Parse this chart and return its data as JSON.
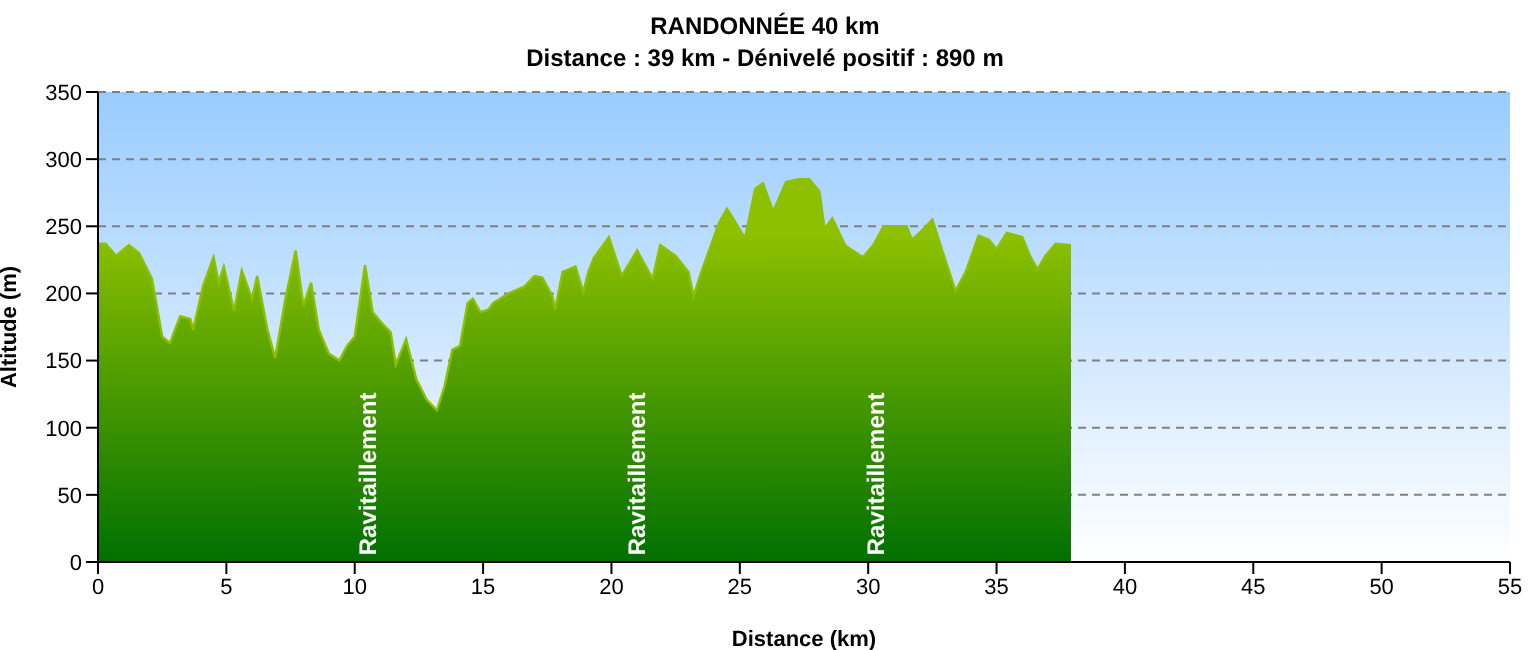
{
  "chart_data": {
    "type": "area",
    "title": "RANDONNÉE 40 km",
    "subtitle": "Distance : 39 km - Dénivelé positif : 890 m",
    "xlabel": "Distance (km)",
    "ylabel": "Altitude (m)",
    "x": [
      0,
      0.3,
      0.7,
      1.2,
      1.6,
      2.1,
      2.5,
      2.8,
      3.2,
      3.6,
      3.7,
      4.1,
      4.5,
      4.7,
      4.9,
      5.3,
      5.6,
      6.0,
      6.2,
      6.6,
      6.9,
      7.3,
      7.7,
      8.0,
      8.3,
      8.6,
      9.0,
      9.4,
      9.7,
      10.0,
      10.4,
      10.7,
      11.1,
      11.4,
      11.6,
      12.0,
      12.4,
      12.8,
      13.2,
      13.5,
      13.8,
      14.1,
      14.4,
      14.6,
      14.9,
      15.2,
      15.4,
      16.0,
      16.6,
      17.0,
      17.3,
      17.7,
      17.8,
      18.1,
      18.6,
      18.9,
      19.1,
      19.3,
      19.9,
      20.4,
      21.0,
      21.6,
      21.9,
      22.5,
      23.0,
      23.2,
      23.5,
      23.9,
      24.2,
      24.5,
      24.7,
      25.2,
      25.6,
      25.9,
      26.3,
      26.8,
      27.3,
      27.7,
      28.1,
      28.3,
      28.6,
      29.1,
      29.3,
      29.8,
      30.2,
      30.6,
      31.5,
      31.7,
      32.0,
      32.5,
      32.9,
      33.4,
      33.8,
      34.3,
      34.7,
      35.0,
      35.4,
      36.0,
      36.3,
      36.6,
      36.9,
      37.3,
      37.9
    ],
    "series": [
      {
        "color": "#8cc000",
        "values": [
          237,
          237,
          228,
          236,
          230,
          211,
          168,
          163,
          183,
          181,
          173,
          206,
          227,
          208,
          220,
          187,
          217,
          196,
          213,
          173,
          152,
          196,
          232,
          191,
          208,
          173,
          155,
          150,
          161,
          168,
          221,
          186,
          177,
          171,
          147,
          166,
          136,
          121,
          113,
          131,
          158,
          161,
          193,
          196,
          186,
          188,
          193,
          200,
          205,
          213,
          212,
          198,
          188,
          216,
          220,
          201,
          216,
          226,
          242,
          213,
          232,
          211,
          236,
          228,
          216,
          198,
          216,
          237,
          253,
          263,
          257,
          241,
          278,
          282,
          261,
          283,
          285,
          285,
          276,
          248,
          256,
          236,
          233,
          227,
          236,
          250,
          250,
          240,
          245,
          255,
          231,
          202,
          216,
          243,
          240,
          233,
          245,
          242,
          228,
          218,
          228,
          237,
          236
        ]
      }
    ],
    "xlim": [
      0,
      55
    ],
    "xticks": [
      0,
      5,
      10,
      15,
      20,
      25,
      30,
      35,
      40,
      45,
      50,
      55
    ],
    "ylim": [
      0,
      350
    ],
    "yticks": [
      0,
      50,
      100,
      150,
      200,
      250,
      300,
      350
    ],
    "grid": "y",
    "annotations": [
      {
        "text": "Ravitaillement",
        "x": 10.5,
        "y": 5
      },
      {
        "text": "Ravitaillement",
        "x": 21,
        "y": 5
      },
      {
        "text": "Ravitaillement",
        "x": 30.3,
        "y": 5
      }
    ]
  }
}
